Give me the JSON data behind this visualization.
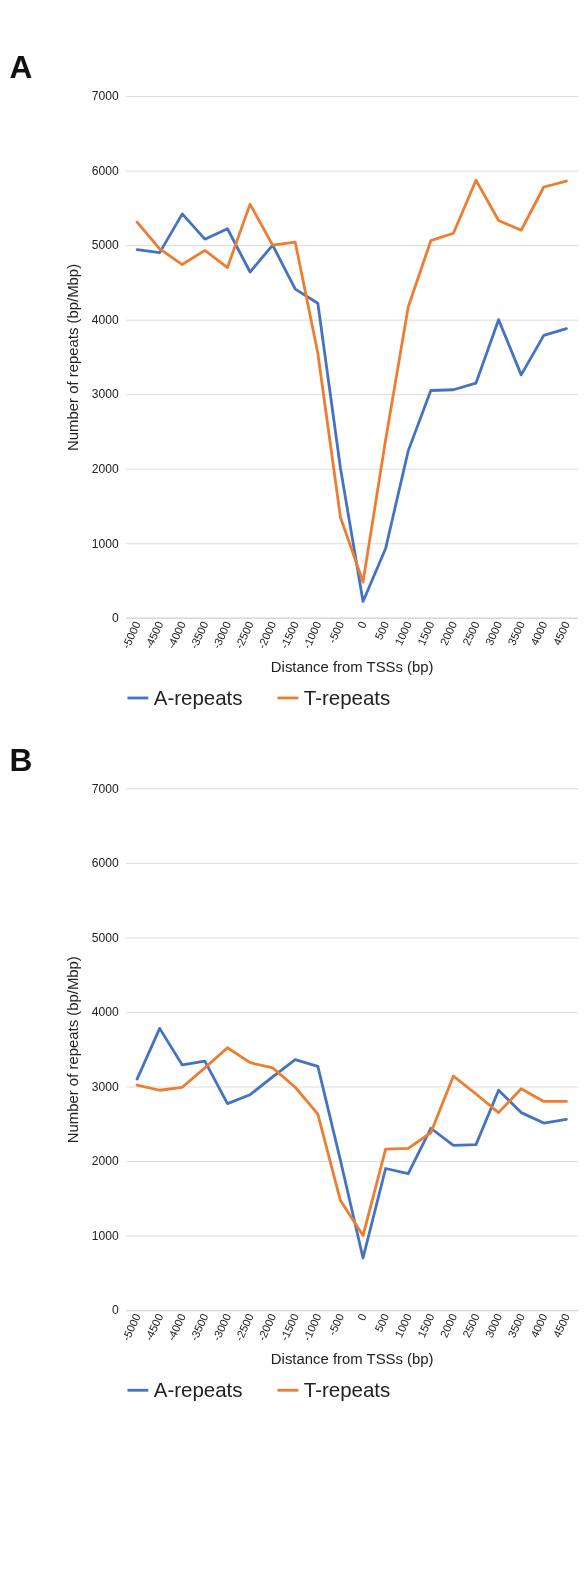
{
  "chart_data": [
    {
      "type": "line",
      "title": "A",
      "xlabel": "Distance from TSSs (bp)",
      "ylabel": "Number of repeats (bp/Mbp)",
      "categories": [
        "-5000",
        "-4500",
        "-4000",
        "-3500",
        "-3000",
        "-2500",
        "-2000",
        "-1500",
        "-1000",
        "-500",
        "0",
        "500",
        "1000",
        "1500",
        "2000",
        "2500",
        "3000",
        "3500",
        "4000",
        "4500"
      ],
      "series": [
        {
          "name": "A-repeats",
          "color": "#4472c4",
          "values": [
            4940,
            4900,
            5420,
            5080,
            5220,
            4640,
            5000,
            4410,
            4220,
            2010,
            220,
            930,
            2240,
            3050,
            3060,
            3150,
            4000,
            3260,
            3790,
            3880
          ]
        },
        {
          "name": "T-repeats",
          "color": "#ed7d31",
          "values": [
            5310,
            4950,
            4740,
            4930,
            4700,
            5550,
            5000,
            5040,
            3550,
            1350,
            480,
            2390,
            4170,
            5060,
            5160,
            5870,
            5330,
            5200,
            5780,
            5860
          ]
        }
      ],
      "ylim": [
        0,
        7000
      ],
      "yticks": [
        0,
        1000,
        2000,
        3000,
        4000,
        5000,
        6000,
        7000
      ],
      "grid": "y",
      "legend": "bottom"
    },
    {
      "type": "line",
      "title": "B",
      "xlabel": "Distance from TSSs (bp)",
      "ylabel": "Number of repeats (bp/Mbp)",
      "categories": [
        "-5000",
        "-4500",
        "-4000",
        "-3500",
        "-3000",
        "-2500",
        "-2000",
        "-1500",
        "-1000",
        "-500",
        "0",
        "500",
        "1000",
        "1500",
        "2000",
        "2500",
        "3000",
        "3500",
        "4000",
        "4500"
      ],
      "series": [
        {
          "name": "A-repeats",
          "color": "#4472c4",
          "values": [
            3100,
            3780,
            3290,
            3340,
            2770,
            2890,
            3130,
            3360,
            3270,
            2010,
            700,
            1900,
            1830,
            2440,
            2210,
            2220,
            2950,
            2650,
            2510,
            2560
          ]
        },
        {
          "name": "T-repeats",
          "color": "#ed7d31",
          "values": [
            3020,
            2950,
            2990,
            3250,
            3520,
            3320,
            3250,
            2990,
            2630,
            1470,
            1000,
            2160,
            2170,
            2380,
            3140,
            2900,
            2650,
            2970,
            2800,
            2800
          ]
        }
      ],
      "ylim": [
        0,
        7000
      ],
      "yticks": [
        0,
        1000,
        2000,
        3000,
        4000,
        5000,
        6000,
        7000
      ],
      "grid": "y",
      "legend": "bottom"
    }
  ]
}
